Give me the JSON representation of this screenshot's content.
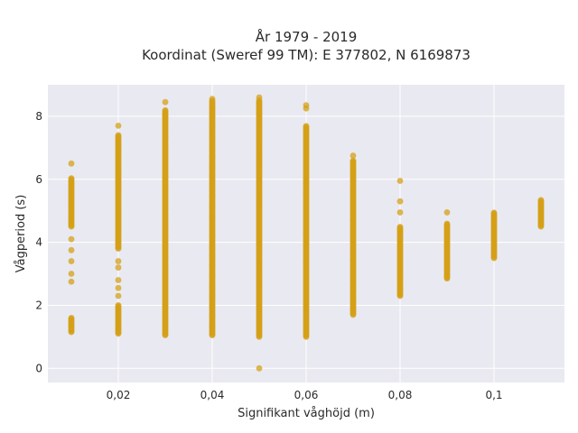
{
  "chart_data": {
    "type": "scatter",
    "title": "År 1979 - 2019",
    "subtitle": "Koordinat (Sweref 99 TM): E 377802, N 6169873",
    "xlabel": "Signifikant våghöjd (m)",
    "ylabel": "Vågperiod (s)",
    "xlim": [
      0.005,
      0.115
    ],
    "ylim": [
      -0.45,
      9.0
    ],
    "x_ticks": [
      0.02,
      0.04,
      0.06,
      0.08,
      0.1
    ],
    "x_tick_labels": [
      "0,02",
      "0,04",
      "0,06",
      "0,08",
      "0,1"
    ],
    "y_ticks": [
      0,
      2,
      4,
      6,
      8
    ],
    "y_tick_labels": [
      "0",
      "2",
      "4",
      "6",
      "8"
    ],
    "grid": true,
    "legend": false,
    "point_color": "#d4a017",
    "background_color": "#e9e9f1",
    "series": [
      {
        "segments": [
          {
            "x": 0.01,
            "y_min": 1.15,
            "y_max": 1.6
          },
          {
            "x": 0.01,
            "y_min": 4.5,
            "y_max": 6.05
          },
          {
            "x": 0.02,
            "y_min": 1.1,
            "y_max": 2.0
          },
          {
            "x": 0.02,
            "y_min": 3.8,
            "y_max": 7.4
          },
          {
            "x": 0.03,
            "y_min": 1.05,
            "y_max": 8.2
          },
          {
            "x": 0.04,
            "y_min": 1.05,
            "y_max": 8.5
          },
          {
            "x": 0.05,
            "y_min": 1.0,
            "y_max": 8.5
          },
          {
            "x": 0.06,
            "y_min": 1.0,
            "y_max": 7.7
          },
          {
            "x": 0.07,
            "y_min": 1.7,
            "y_max": 6.6
          },
          {
            "x": 0.08,
            "y_min": 2.3,
            "y_max": 4.5
          },
          {
            "x": 0.09,
            "y_min": 2.85,
            "y_max": 4.6
          },
          {
            "x": 0.1,
            "y_min": 3.5,
            "y_max": 4.95
          },
          {
            "x": 0.11,
            "y_min": 4.5,
            "y_max": 5.35
          }
        ],
        "points": [
          {
            "x": 0.01,
            "y": 6.5
          },
          {
            "x": 0.01,
            "y": 4.1
          },
          {
            "x": 0.01,
            "y": 3.75
          },
          {
            "x": 0.01,
            "y": 3.4
          },
          {
            "x": 0.01,
            "y": 3.0
          },
          {
            "x": 0.01,
            "y": 2.75
          },
          {
            "x": 0.02,
            "y": 7.7
          },
          {
            "x": 0.02,
            "y": 3.4
          },
          {
            "x": 0.02,
            "y": 3.2
          },
          {
            "x": 0.02,
            "y": 2.8
          },
          {
            "x": 0.02,
            "y": 2.55
          },
          {
            "x": 0.02,
            "y": 2.3
          },
          {
            "x": 0.03,
            "y": 8.45
          },
          {
            "x": 0.04,
            "y": 8.55
          },
          {
            "x": 0.05,
            "y": 8.6
          },
          {
            "x": 0.05,
            "y": 0.0
          },
          {
            "x": 0.06,
            "y": 8.35
          },
          {
            "x": 0.06,
            "y": 8.25
          },
          {
            "x": 0.07,
            "y": 6.75
          },
          {
            "x": 0.08,
            "y": 5.95
          },
          {
            "x": 0.08,
            "y": 5.3
          },
          {
            "x": 0.08,
            "y": 4.95
          },
          {
            "x": 0.09,
            "y": 4.95
          }
        ]
      }
    ]
  }
}
